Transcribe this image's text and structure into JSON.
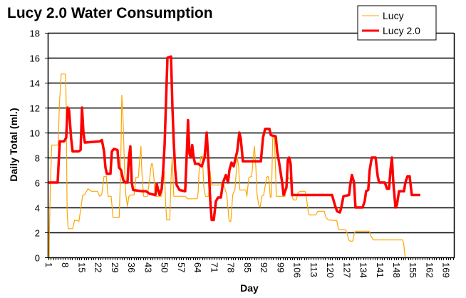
{
  "chart_data": {
    "type": "line",
    "title": "Lucy 2.0 Water Consumption",
    "xlabel": "Day",
    "ylabel": "Daily Total (ml.)",
    "xlim": [
      1,
      172.4
    ],
    "ylim": [
      0,
      18
    ],
    "yticks": [
      0,
      2,
      4,
      6,
      8,
      10,
      12,
      14,
      16,
      18
    ],
    "xticks": [
      1,
      8,
      15,
      22,
      29,
      36,
      43,
      50,
      57,
      64,
      71,
      78,
      85,
      92,
      99,
      106,
      113,
      120,
      127,
      134,
      141,
      148,
      155,
      162,
      169
    ],
    "grid": "horizontal",
    "legend": "top-right",
    "series": [
      {
        "name": "Lucy",
        "color": "#FFA500",
        "points": [
          [
            1.3,
            0
          ],
          [
            1.4,
            2.0
          ],
          [
            1.8,
            5.7
          ],
          [
            2.4,
            9.0
          ],
          [
            5.1,
            9.0
          ],
          [
            5.6,
            12.2
          ],
          [
            6.4,
            14.7
          ],
          [
            8.1,
            14.7
          ],
          [
            8.4,
            13.3
          ],
          [
            8.9,
            3.7
          ],
          [
            9.3,
            2.3
          ],
          [
            11.2,
            2.3
          ],
          [
            12.1,
            3.0
          ],
          [
            13.9,
            2.9
          ],
          [
            14.6,
            3.8
          ],
          [
            15.5,
            5.0
          ],
          [
            16.2,
            5.0
          ],
          [
            17.7,
            5.5
          ],
          [
            19.2,
            5.3
          ],
          [
            21.7,
            5.3
          ],
          [
            22.7,
            4.9
          ],
          [
            23.5,
            5.0
          ],
          [
            24.5,
            6.5
          ],
          [
            25.5,
            6.5
          ],
          [
            26.2,
            4.9
          ],
          [
            27.5,
            4.9
          ],
          [
            28.3,
            3.2
          ],
          [
            30.9,
            3.2
          ],
          [
            31.5,
            6.9
          ],
          [
            32.0,
            13.0
          ],
          [
            32.4,
            12.0
          ],
          [
            33.2,
            6.9
          ],
          [
            33.7,
            5.0
          ],
          [
            34.4,
            4.1
          ],
          [
            35.0,
            4.9
          ],
          [
            35.9,
            5.0
          ],
          [
            37.2,
            5.0
          ],
          [
            38.0,
            6.4
          ],
          [
            39.0,
            6.4
          ],
          [
            39.5,
            7.7
          ],
          [
            40.1,
            8.9
          ],
          [
            40.5,
            6.9
          ],
          [
            41.2,
            4.9
          ],
          [
            42.8,
            4.9
          ],
          [
            43.8,
            6.3
          ],
          [
            44.5,
            7.5
          ],
          [
            45.0,
            7.5
          ],
          [
            45.6,
            6.3
          ],
          [
            46.1,
            4.9
          ],
          [
            48.8,
            4.9
          ],
          [
            50.0,
            6.9
          ],
          [
            50.6,
            4.1
          ],
          [
            51.0,
            3.0
          ],
          [
            52.3,
            3.0
          ],
          [
            52.8,
            6.3
          ],
          [
            53.3,
            8.0
          ],
          [
            54.0,
            4.9
          ],
          [
            58.8,
            4.9
          ],
          [
            59.8,
            4.7
          ],
          [
            63.9,
            4.7
          ],
          [
            64.3,
            5.2
          ],
          [
            64.6,
            6.7
          ],
          [
            65.4,
            8.1
          ],
          [
            66.1,
            8.1
          ],
          [
            66.7,
            5.6
          ],
          [
            67.4,
            4.9
          ],
          [
            68.7,
            4.9
          ],
          [
            69.4,
            6.9
          ],
          [
            69.9,
            5.8
          ],
          [
            73.9,
            5.8
          ],
          [
            74.7,
            6.1
          ],
          [
            76.4,
            5.0
          ],
          [
            77.4,
            2.9
          ],
          [
            78.1,
            2.9
          ],
          [
            78.9,
            5.0
          ],
          [
            79.9,
            5.5
          ],
          [
            80.4,
            6.9
          ],
          [
            80.9,
            8.0
          ],
          [
            81.4,
            7.3
          ],
          [
            81.9,
            5.4
          ],
          [
            84.4,
            5.4
          ],
          [
            84.9,
            4.9
          ],
          [
            85.7,
            6.4
          ],
          [
            86.9,
            6.5
          ],
          [
            87.7,
            8.2
          ],
          [
            88.1,
            8.9
          ],
          [
            88.7,
            7.2
          ],
          [
            89.2,
            5.0
          ],
          [
            89.9,
            4.2
          ],
          [
            90.5,
            4.0
          ],
          [
            91.2,
            4.9
          ],
          [
            92.0,
            5.0
          ],
          [
            92.5,
            5.6
          ],
          [
            93.2,
            6.4
          ],
          [
            93.8,
            6.5
          ],
          [
            94.3,
            6.1
          ],
          [
            94.8,
            4.8
          ],
          [
            95.3,
            4.9
          ],
          [
            95.8,
            9.6
          ],
          [
            96.5,
            9.7
          ],
          [
            97.0,
            7.1
          ],
          [
            97.3,
            4.9
          ],
          [
            101.0,
            4.9
          ],
          [
            101.8,
            6.0
          ],
          [
            102.5,
            6.4
          ],
          [
            103.2,
            6.3
          ],
          [
            103.8,
            5.0
          ],
          [
            104.5,
            4.6
          ],
          [
            105.8,
            4.6
          ],
          [
            106.5,
            5.2
          ],
          [
            107.5,
            5.3
          ],
          [
            109.5,
            5.3
          ],
          [
            110.2,
            4.6
          ],
          [
            110.8,
            3.7
          ],
          [
            111.2,
            3.4
          ],
          [
            114.0,
            3.4
          ],
          [
            114.9,
            3.7
          ],
          [
            117.6,
            3.7
          ],
          [
            118.3,
            3.2
          ],
          [
            119.3,
            3.0
          ],
          [
            122.9,
            2.95
          ],
          [
            123.6,
            2.25
          ],
          [
            126.6,
            2.2
          ],
          [
            127.3,
            1.9
          ],
          [
            127.9,
            1.4
          ],
          [
            128.6,
            1.3
          ],
          [
            129.6,
            1.3
          ],
          [
            130.3,
            1.9
          ],
          [
            130.9,
            2.1
          ],
          [
            136.6,
            2.1
          ],
          [
            137.4,
            1.7
          ],
          [
            138.3,
            1.4
          ],
          [
            150.7,
            1.4
          ],
          [
            151.2,
            1.1
          ],
          [
            151.7,
            0.2
          ],
          [
            151.9,
            0
          ]
        ]
      },
      {
        "name": "Lucy 2.0",
        "color": "#FF0000",
        "points": [
          [
            1,
            6.0
          ],
          [
            4.9,
            6.0
          ],
          [
            5.8,
            9.3
          ],
          [
            7.6,
            9.3
          ],
          [
            8.5,
            9.6
          ],
          [
            9.1,
            12.0
          ],
          [
            9.7,
            11.8
          ],
          [
            10.6,
            9.5
          ],
          [
            11.2,
            8.5
          ],
          [
            13.7,
            8.5
          ],
          [
            14.6,
            8.6
          ],
          [
            15.2,
            12.0
          ],
          [
            15.8,
            10.0
          ],
          [
            16.4,
            9.2
          ],
          [
            22.7,
            9.3
          ],
          [
            23.6,
            9.4
          ],
          [
            24.5,
            8.5
          ],
          [
            25.1,
            7.2
          ],
          [
            25.7,
            6.7
          ],
          [
            27.2,
            6.7
          ],
          [
            27.8,
            8.5
          ],
          [
            28.7,
            8.7
          ],
          [
            30.2,
            8.6
          ],
          [
            30.8,
            7.2
          ],
          [
            31.7,
            7.0
          ],
          [
            32.6,
            6.2
          ],
          [
            33.5,
            6.0
          ],
          [
            34.4,
            6.0
          ],
          [
            35.0,
            8.0
          ],
          [
            35.6,
            8.9
          ],
          [
            36.2,
            6.0
          ],
          [
            36.8,
            5.4
          ],
          [
            40.8,
            5.3
          ],
          [
            42.3,
            5.3
          ],
          [
            43.8,
            5.1
          ],
          [
            46.2,
            5.0
          ],
          [
            46.8,
            5.9
          ],
          [
            47.4,
            5.4
          ],
          [
            48.0,
            5.0
          ],
          [
            48.9,
            5.5
          ],
          [
            49.5,
            7.0
          ],
          [
            50.1,
            9.0
          ],
          [
            50.7,
            12.5
          ],
          [
            51.3,
            16.0
          ],
          [
            52.8,
            16.1
          ],
          [
            53.4,
            12.0
          ],
          [
            54.0,
            9.2
          ],
          [
            54.6,
            7.0
          ],
          [
            55.2,
            5.8
          ],
          [
            56.4,
            5.4
          ],
          [
            58.8,
            5.3
          ],
          [
            59.4,
            8.0
          ],
          [
            60.0,
            11.0
          ],
          [
            60.6,
            8.3
          ],
          [
            61.2,
            8.0
          ],
          [
            61.8,
            9.0
          ],
          [
            62.4,
            8.0
          ],
          [
            63.0,
            7.5
          ],
          [
            64.3,
            7.5
          ],
          [
            65.8,
            7.3
          ],
          [
            67.0,
            8.0
          ],
          [
            67.9,
            10.0
          ],
          [
            68.8,
            7.0
          ],
          [
            69.4,
            4.5
          ],
          [
            70.0,
            3.0
          ],
          [
            70.9,
            3.0
          ],
          [
            71.8,
            4.5
          ],
          [
            72.7,
            4.8
          ],
          [
            73.9,
            4.8
          ],
          [
            74.8,
            6.0
          ],
          [
            76.0,
            6.6
          ],
          [
            76.9,
            6.0
          ],
          [
            77.5,
            7.0
          ],
          [
            78.4,
            7.6
          ],
          [
            79.3,
            7.3
          ],
          [
            80.8,
            8.5
          ],
          [
            81.7,
            10.0
          ],
          [
            82.3,
            9.5
          ],
          [
            83.2,
            7.7
          ],
          [
            89.0,
            7.7
          ],
          [
            90.8,
            7.7
          ],
          [
            91.7,
            9.6
          ],
          [
            92.6,
            10.3
          ],
          [
            94.4,
            10.3
          ],
          [
            95.0,
            9.8
          ],
          [
            97.1,
            9.7
          ],
          [
            97.7,
            8.5
          ],
          [
            98.6,
            7.5
          ],
          [
            99.8,
            6.0
          ],
          [
            100.4,
            5.0
          ],
          [
            101.6,
            5.6
          ],
          [
            102.2,
            7.8
          ],
          [
            102.8,
            8.0
          ],
          [
            103.4,
            7.5
          ],
          [
            104.0,
            5.0
          ],
          [
            120.9,
            5.0
          ],
          [
            122.1,
            4.2
          ],
          [
            123.0,
            3.7
          ],
          [
            124.2,
            3.6
          ],
          [
            124.8,
            4.0
          ],
          [
            125.7,
            4.9
          ],
          [
            128.1,
            5.0
          ],
          [
            128.7,
            6.0
          ],
          [
            129.3,
            6.6
          ],
          [
            130.2,
            6.0
          ],
          [
            130.8,
            4.0
          ],
          [
            133.8,
            4.0
          ],
          [
            134.7,
            4.5
          ],
          [
            135.3,
            5.3
          ],
          [
            136.2,
            5.4
          ],
          [
            136.8,
            7.0
          ],
          [
            137.7,
            8.0
          ],
          [
            139.3,
            8.0
          ],
          [
            140.2,
            6.5
          ],
          [
            140.8,
            6.0
          ],
          [
            143.2,
            6.0
          ],
          [
            144.1,
            5.5
          ],
          [
            145.0,
            5.5
          ],
          [
            145.6,
            7.0
          ],
          [
            146.2,
            8.0
          ],
          [
            146.8,
            6.0
          ],
          [
            147.7,
            4.0
          ],
          [
            148.3,
            4.2
          ],
          [
            149.2,
            5.3
          ],
          [
            151.3,
            5.3
          ],
          [
            151.9,
            6.0
          ],
          [
            152.8,
            6.5
          ],
          [
            153.7,
            6.5
          ],
          [
            154.6,
            5.0
          ],
          [
            158.2,
            5.0
          ]
        ]
      }
    ]
  }
}
